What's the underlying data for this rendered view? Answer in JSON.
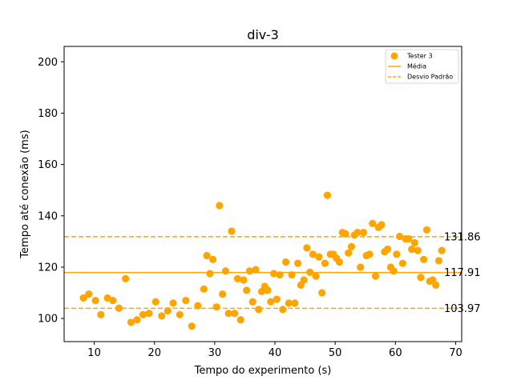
{
  "chart_data": {
    "type": "scatter",
    "title": "div-3",
    "xlabel": "Tempo do experimento (s)",
    "ylabel": "Tempo até conexão (ms)",
    "xlim": [
      5,
      71
    ],
    "ylim": [
      91,
      206
    ],
    "xticks": [
      10,
      20,
      30,
      40,
      50,
      60,
      70
    ],
    "yticks": [
      100,
      120,
      140,
      160,
      180,
      200
    ],
    "grid": false,
    "legend_position": "top-right",
    "colors": {
      "points": "#ffa500",
      "lines": "#ffa500"
    },
    "series": [
      {
        "name": "Tester 3",
        "x": [
          8.2,
          9.1,
          10.2,
          11.1,
          12.2,
          13.1,
          14.1,
          15.2,
          16.1,
          17.1,
          18.1,
          19.1,
          20.2,
          21.2,
          22.2,
          23.1,
          24.2,
          25.2,
          26.2,
          27.2,
          28.2,
          28.7,
          29.2,
          29.7,
          30.3,
          30.8,
          31.3,
          31.8,
          32.3,
          32.8,
          33.3,
          33.8,
          34.3,
          34.8,
          35.3,
          35.8,
          36.3,
          36.8,
          37.3,
          37.8,
          38.3,
          38.8,
          39.3,
          39.8,
          40.3,
          40.8,
          41.3,
          41.8,
          42.3,
          42.8,
          43.3,
          43.8,
          44.3,
          44.8,
          45.3,
          45.8,
          46.3,
          46.8,
          47.3,
          47.8,
          48.3,
          48.7,
          49.2,
          49.7,
          50.2,
          50.7,
          51.2,
          51.7,
          52.2,
          52.7,
          53.2,
          53.7,
          54.2,
          54.7,
          55.2,
          55.7,
          56.2,
          56.7,
          57.2,
          57.7,
          58.2,
          58.7,
          59.2,
          59.7,
          60.2,
          60.7,
          61.2,
          61.7,
          62.2,
          62.7,
          63.2,
          63.7,
          64.2,
          64.7,
          65.2,
          65.7,
          66.2,
          66.7,
          67.2,
          67.7
        ],
        "y": [
          108,
          109.5,
          107,
          101.5,
          108,
          107,
          104,
          115.5,
          98.5,
          99.5,
          101.5,
          102,
          106.5,
          101,
          103,
          106,
          101.5,
          107,
          97,
          105,
          111.5,
          124.5,
          117.5,
          123,
          104.5,
          144,
          109.5,
          118.5,
          102,
          134,
          102,
          115.5,
          99.5,
          115,
          111,
          118.5,
          106.5,
          119,
          103.5,
          110.5,
          112.5,
          111,
          106.5,
          117.5,
          107.5,
          117,
          103.5,
          122,
          106,
          117,
          106,
          121.5,
          113,
          115,
          127.5,
          118,
          125,
          116.5,
          124,
          110,
          121.5,
          148,
          125,
          125,
          123.5,
          122,
          133.5,
          133,
          125.5,
          128,
          132.5,
          133.5,
          120,
          133.5,
          124.5,
          125,
          137,
          116.5,
          135.5,
          136.5,
          126,
          127,
          120,
          118.5,
          125,
          132,
          121.5,
          131,
          131,
          127,
          129.5,
          126.5,
          116,
          123,
          134.5,
          114.5,
          115,
          113,
          122.5,
          126.5
        ]
      }
    ],
    "reference_lines": [
      {
        "name": "Média",
        "y": 117.91,
        "label": "117.91",
        "style": "solid"
      },
      {
        "name": "Desvio Padrão",
        "y": 131.86,
        "label": "131.86",
        "style": "dashed"
      },
      {
        "y": 103.97,
        "label": "103.97",
        "style": "dashed"
      }
    ]
  }
}
